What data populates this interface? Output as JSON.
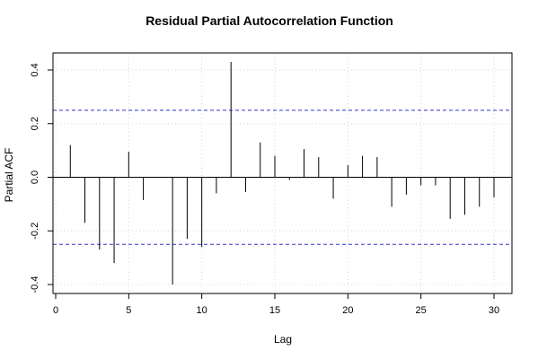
{
  "chart_data": {
    "type": "bar",
    "title": "Residual Partial Autocorrelation Function",
    "xlabel": "Lag",
    "ylabel": "Partial ACF",
    "x": [
      1,
      2,
      3,
      4,
      5,
      6,
      7,
      8,
      9,
      10,
      11,
      12,
      13,
      14,
      15,
      16,
      17,
      18,
      19,
      20,
      21,
      22,
      23,
      24,
      25,
      26,
      27,
      28,
      29,
      30
    ],
    "values": [
      0.12,
      -0.17,
      -0.27,
      -0.32,
      0.095,
      -0.085,
      0.0,
      -0.4,
      -0.23,
      -0.26,
      -0.06,
      0.43,
      -0.055,
      0.13,
      0.08,
      -0.01,
      0.105,
      0.075,
      -0.08,
      0.045,
      0.08,
      0.075,
      -0.11,
      -0.065,
      -0.03,
      -0.03,
      -0.155,
      -0.14,
      -0.11,
      -0.075
    ],
    "confidence_band": [
      0.25,
      -0.25
    ],
    "xlim": [
      0,
      30
    ],
    "ylim": [
      -0.4,
      0.4
    ],
    "xticks": [
      "0",
      "5",
      "10",
      "15",
      "20",
      "25",
      "30"
    ],
    "yticks": [
      "-0.4",
      "-0.2",
      "0.0",
      "0.2",
      "0.4"
    ],
    "grid": true,
    "colors": {
      "bars": "#000000",
      "band": "#3333cc",
      "grid": "#d8d8d8"
    }
  }
}
